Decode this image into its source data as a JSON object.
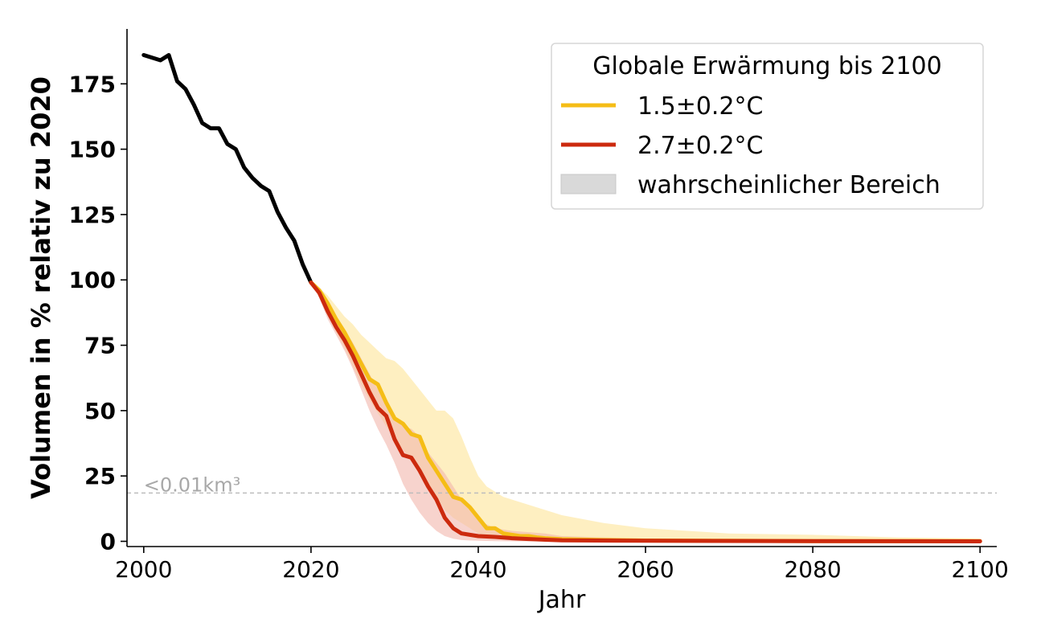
{
  "chart_data": {
    "type": "line",
    "xlabel": "Jahr",
    "ylabel": "Volumen in % relativ zu 2020",
    "xlim": [
      1998,
      2102
    ],
    "ylim": [
      -2,
      196
    ],
    "x_ticks": [
      2000,
      2020,
      2040,
      2060,
      2080,
      2100
    ],
    "y_ticks": [
      0,
      25,
      50,
      75,
      100,
      125,
      150,
      175
    ],
    "grid": false,
    "legend": {
      "title": "Globale Erwärmung bis 2100",
      "placement": "top-right",
      "range_label": "wahrscheinlicher Bereich",
      "range_color": "#d9d9d9"
    },
    "threshold": {
      "y": 18.5,
      "label": "<0.01km³",
      "color": "#bdbdbd"
    },
    "observed": {
      "color": "#000000",
      "x": [
        2000,
        2001,
        2002,
        2003,
        2004,
        2005,
        2006,
        2007,
        2008,
        2009,
        2010,
        2011,
        2012,
        2013,
        2014,
        2015,
        2016,
        2017,
        2018,
        2019,
        2020
      ],
      "y": [
        186,
        185,
        184,
        186,
        176,
        173,
        167,
        160,
        158,
        158,
        152,
        150,
        143,
        139,
        136,
        134,
        126,
        120,
        115,
        106,
        99
      ]
    },
    "series": [
      {
        "name": "1.5±0.2°C",
        "color": "#f5bd16",
        "band_color": "#fde8a7",
        "x": [
          2020,
          2021,
          2022,
          2023,
          2024,
          2025,
          2026,
          2027,
          2028,
          2029,
          2030,
          2031,
          2032,
          2033,
          2034,
          2035,
          2036,
          2037,
          2038,
          2039,
          2040,
          2041,
          2042,
          2043,
          2044,
          2045,
          2046,
          2047,
          2048,
          2049,
          2050,
          2055,
          2060,
          2070,
          2080,
          2090,
          2100
        ],
        "y": [
          99,
          96,
          91,
          85,
          80,
          74,
          68,
          62,
          60,
          53,
          47,
          45,
          41,
          40,
          32,
          27,
          22,
          17,
          16,
          13,
          9,
          5,
          5,
          3,
          2.5,
          2,
          2,
          1.5,
          1.2,
          1,
          0.8,
          0.5,
          0.3,
          0.2,
          0.1,
          0.1,
          0.1
        ],
        "lower": [
          99,
          94,
          87,
          80,
          74,
          67,
          60,
          54,
          49,
          44,
          39,
          35,
          31,
          27,
          21,
          17,
          12,
          9,
          7,
          5,
          3,
          2,
          1.5,
          1,
          0.8,
          0.5,
          0.4,
          0.3,
          0.2,
          0.1,
          0.1,
          0.1,
          0,
          0,
          0,
          0,
          0
        ],
        "upper": [
          99,
          97,
          94,
          90,
          86,
          83,
          79,
          76,
          73,
          70,
          69,
          66,
          62,
          58,
          54,
          50,
          50,
          47,
          40,
          32,
          25,
          21,
          19,
          17,
          16,
          15,
          14,
          13,
          12,
          11,
          10,
          7,
          5,
          3,
          2.5,
          1.5,
          1
        ]
      },
      {
        "name": "2.7±0.2°C",
        "color": "#cc2a0e",
        "band_color": "#f2b6ac",
        "x": [
          2020,
          2021,
          2022,
          2023,
          2024,
          2025,
          2026,
          2027,
          2028,
          2029,
          2030,
          2031,
          2032,
          2033,
          2034,
          2035,
          2036,
          2037,
          2038,
          2039,
          2040,
          2042,
          2044,
          2046,
          2048,
          2050,
          2060,
          2080,
          2100
        ],
        "y": [
          99,
          95,
          88,
          82,
          77,
          71,
          64,
          57,
          51,
          48,
          39,
          33,
          32,
          27,
          21,
          16,
          9,
          5,
          3,
          2.5,
          2,
          1.7,
          1.2,
          0.9,
          0.6,
          0.4,
          0.2,
          0.1,
          0
        ],
        "lower": [
          99,
          93,
          85,
          79,
          73,
          66,
          58,
          50,
          43,
          37,
          30,
          22,
          16,
          11,
          7,
          4,
          2,
          1,
          0.5,
          0.3,
          0.2,
          0.1,
          0,
          0,
          0,
          0,
          0,
          0,
          0
        ],
        "upper": [
          99,
          96,
          91,
          86,
          81,
          76,
          70,
          64,
          58,
          54,
          48,
          44,
          43,
          40,
          34,
          30,
          26,
          21,
          16,
          12,
          8,
          5,
          4,
          3.5,
          3,
          2,
          1,
          0.5,
          0.2
        ]
      }
    ]
  }
}
